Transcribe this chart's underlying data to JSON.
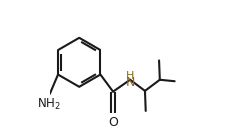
{
  "bg_color": "#ffffff",
  "bond_color": "#1a1a1a",
  "nh_color": "#8B6914",
  "line_width": 1.5,
  "fig_width": 2.49,
  "fig_height": 1.35,
  "dpi": 100,
  "xlim": [
    0.0,
    1.0
  ],
  "ylim": [
    0.05,
    0.95
  ]
}
